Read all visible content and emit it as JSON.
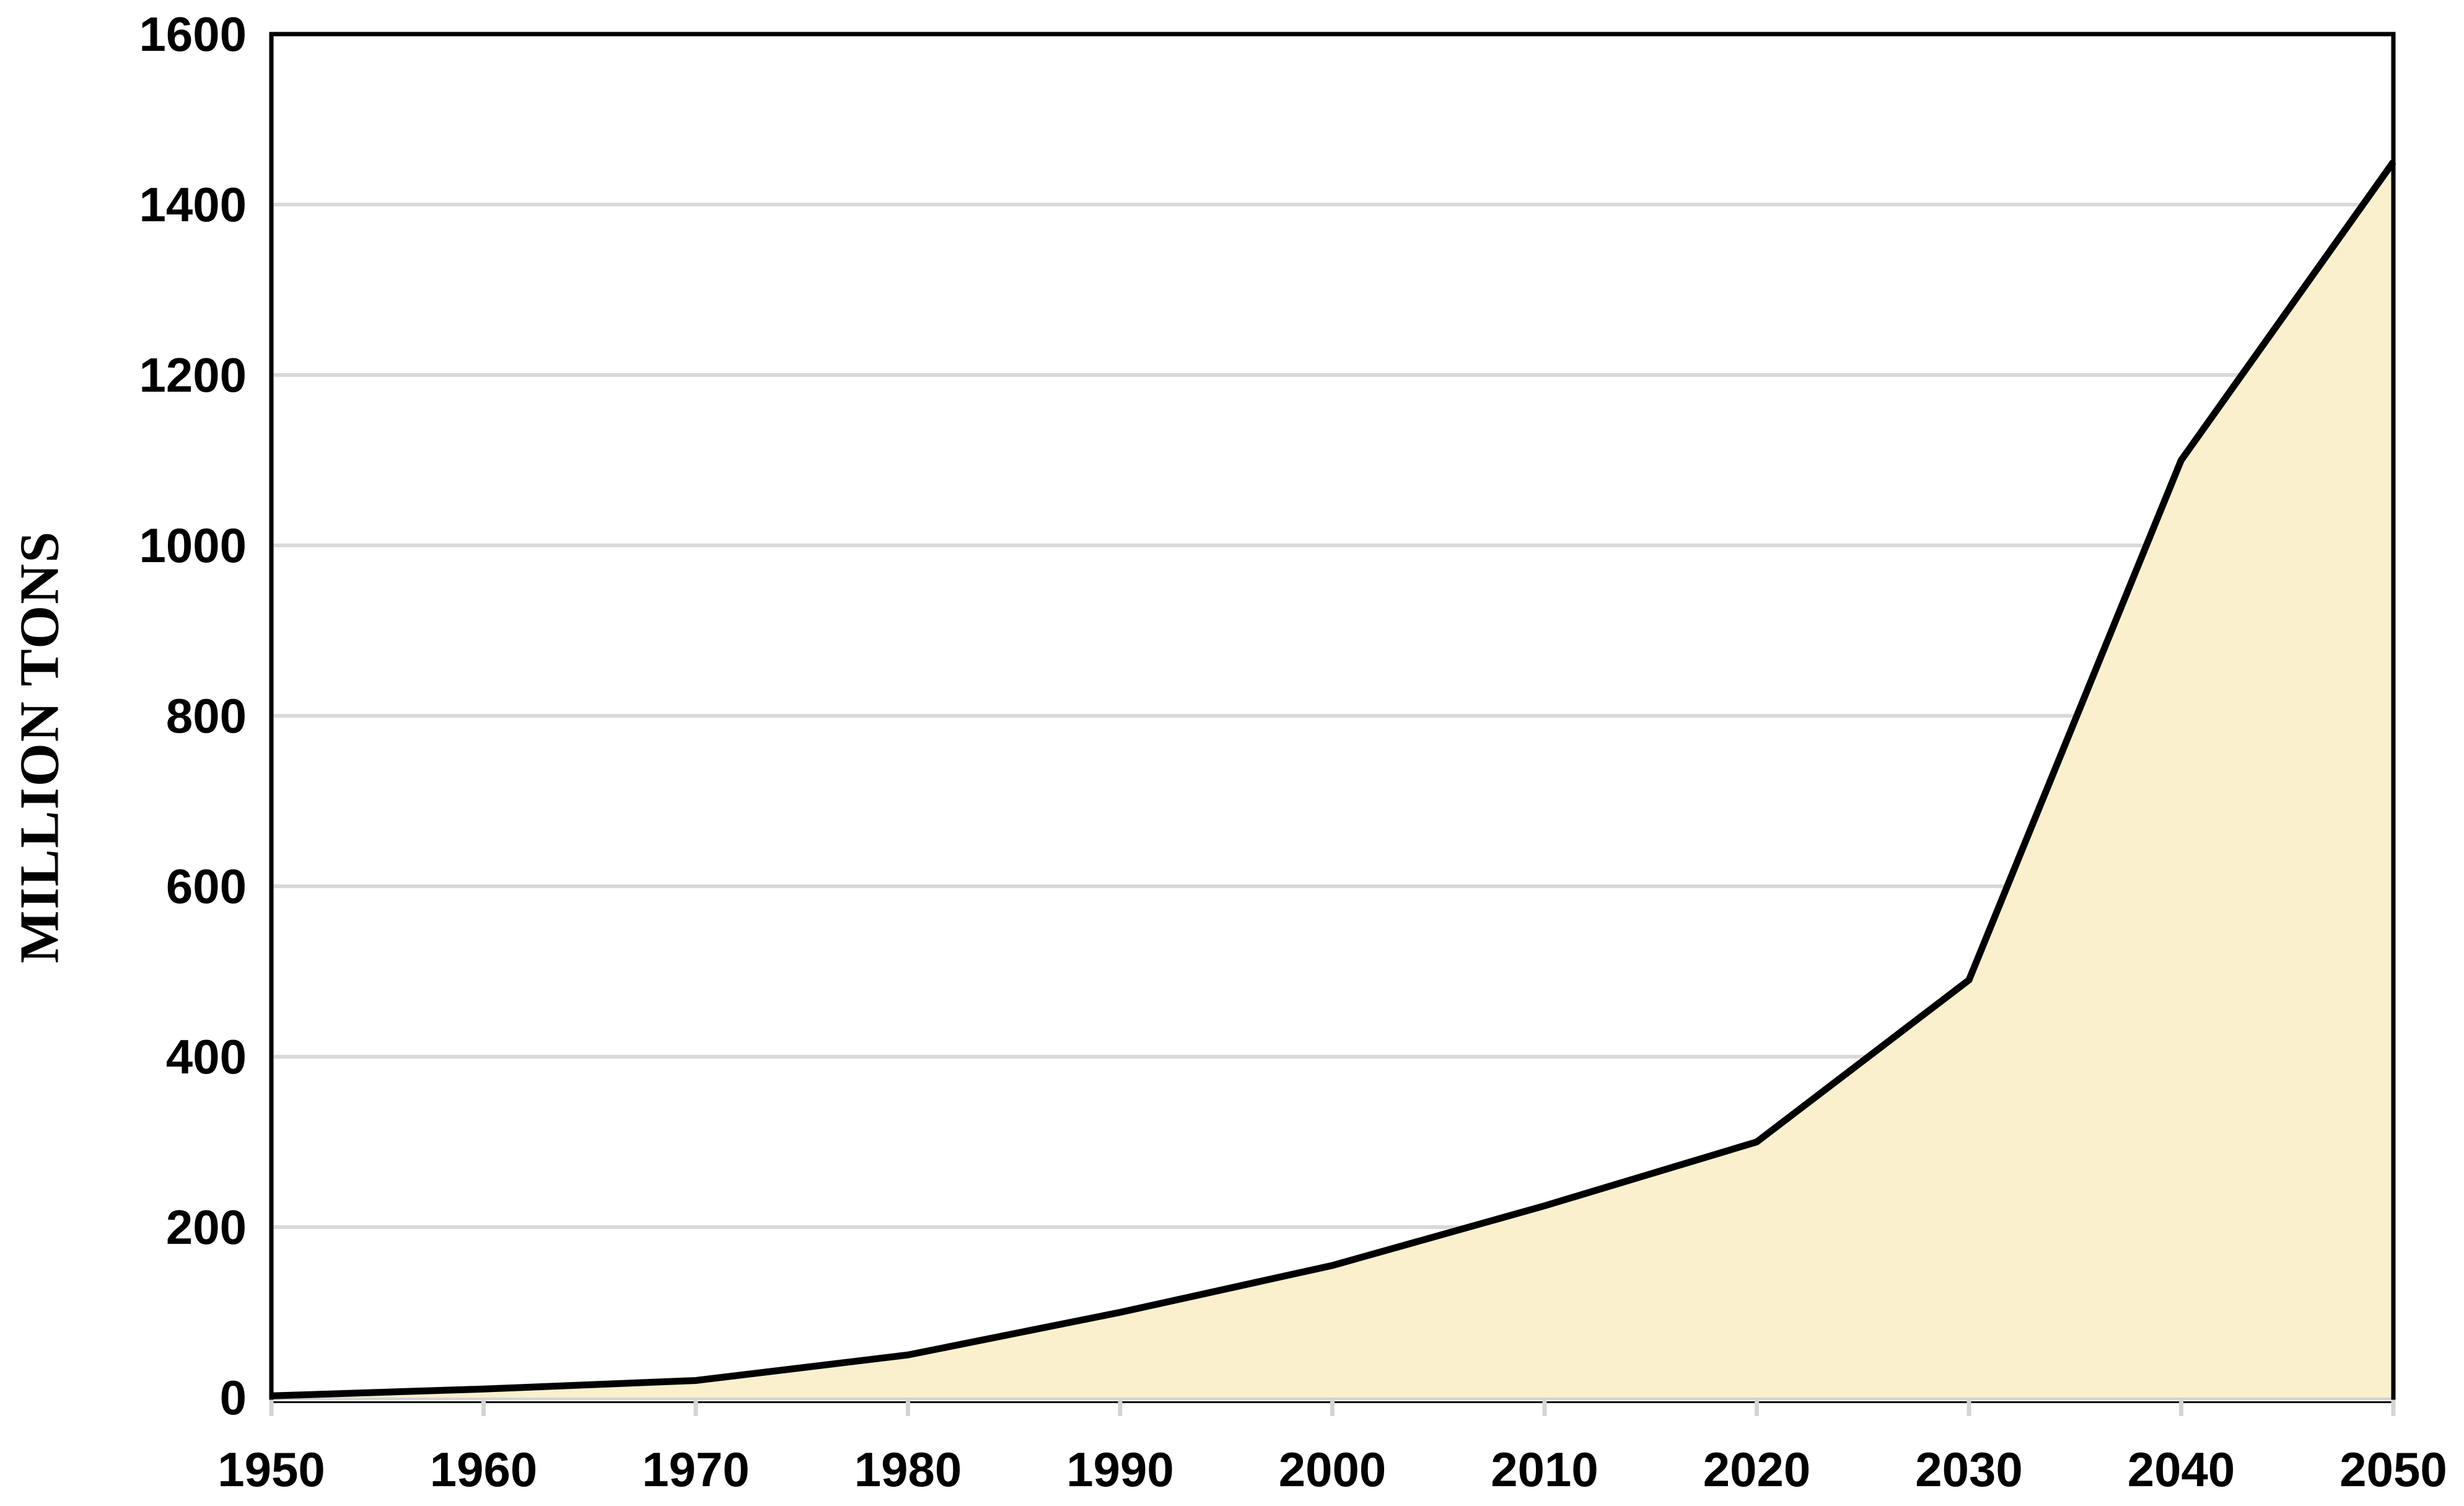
{
  "chart_data": {
    "type": "area",
    "title": "",
    "xlabel": "",
    "ylabel": "MILLION TONS",
    "x": [
      1950,
      1960,
      1970,
      1980,
      1990,
      2000,
      2010,
      2020,
      2030,
      2040,
      2050
    ],
    "x_tick_labels": [
      "1950",
      "1960",
      "1970",
      "1980",
      "1990",
      "2000",
      "2010",
      "2020",
      "2030",
      "2040",
      "2050"
    ],
    "series": [
      {
        "name": "million-tons",
        "values": [
          2,
          10,
          20,
          50,
          100,
          155,
          225,
          300,
          490,
          1100,
          1450
        ]
      }
    ],
    "ylim": [
      0,
      1600
    ],
    "xlim": [
      1950,
      2050
    ],
    "y_ticks": [
      0,
      200,
      400,
      600,
      800,
      1000,
      1200,
      1400,
      1600
    ],
    "grid": "horizontal-major-on",
    "legend": "none",
    "colors": {
      "area_fill": "#FAF0CD",
      "line": "#000000",
      "gridline": "#D9D9D9",
      "axis_line": "#D4D4D4",
      "border": "#000000",
      "text": "#000000",
      "background": "#FFFFFF"
    }
  }
}
